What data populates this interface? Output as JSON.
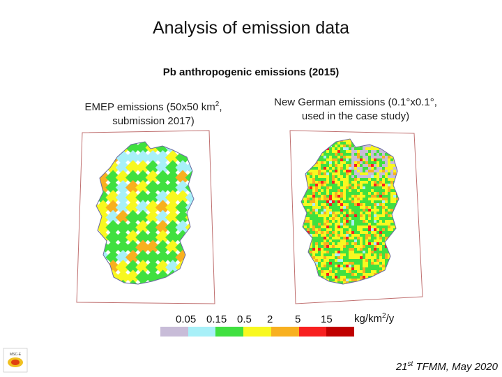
{
  "slide": {
    "title": "Analysis of emission data",
    "subtitle": "Pb anthropogenic emissions (2015)",
    "left_caption_line1_a": "EMEP emissions (50x50 km",
    "left_caption_line1_sup": "2",
    "left_caption_line1_b": ",",
    "left_caption_line2": "submission 2017)",
    "right_caption_line1": "New German emissions (0.1°x0.1°,",
    "right_caption_line2": "used in the case study)",
    "footer_a": "21",
    "footer_sup": "st",
    "footer_b": " TFMM, May 2020",
    "logo_text": "MSC-E"
  },
  "legend": {
    "labels": [
      "0.05",
      "0.15",
      "0.5",
      "2",
      "5",
      "15"
    ],
    "unit_a": "kg/km",
    "unit_sup": "2",
    "unit_b": "/y",
    "colors": [
      "#c8bcd8",
      "#a8f0f8",
      "#40e040",
      "#f8f820",
      "#f8b020",
      "#f82020",
      "#c00000"
    ]
  },
  "colors": {
    "frame": "#c07070",
    "border": "#7070a0"
  }
}
